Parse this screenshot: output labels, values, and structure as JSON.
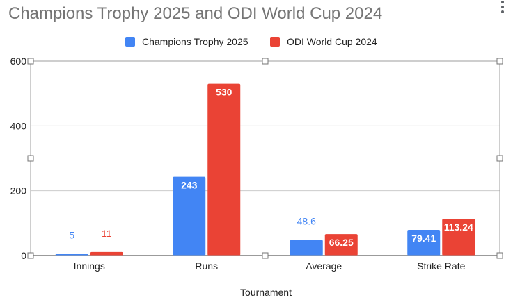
{
  "chart_data": {
    "type": "bar",
    "title": "Champions Trophy 2025 and ODI World Cup 2024",
    "xlabel": "Tournament",
    "ylabel": "",
    "categories": [
      "Innings",
      "Runs",
      "Average",
      "Strike Rate"
    ],
    "series": [
      {
        "name": "Champions Trophy 2025",
        "color": "#4285f4",
        "values": [
          5,
          243,
          48.6,
          79.41
        ]
      },
      {
        "name": "ODI World Cup 2024",
        "color": "#ea4335",
        "values": [
          11,
          530,
          66.25,
          113.24
        ]
      }
    ],
    "data_labels": [
      [
        "5",
        "243",
        "48.6",
        "79.41"
      ],
      [
        "11",
        "530",
        "66.25",
        "113.24"
      ]
    ],
    "ylim": [
      0,
      600
    ],
    "yticks": [
      "0",
      "200",
      "400",
      "600"
    ],
    "ytick_values": [
      0,
      200,
      400,
      600
    ],
    "grid": true,
    "legend_position": "top"
  },
  "menu_icon": "more-vert-icon"
}
